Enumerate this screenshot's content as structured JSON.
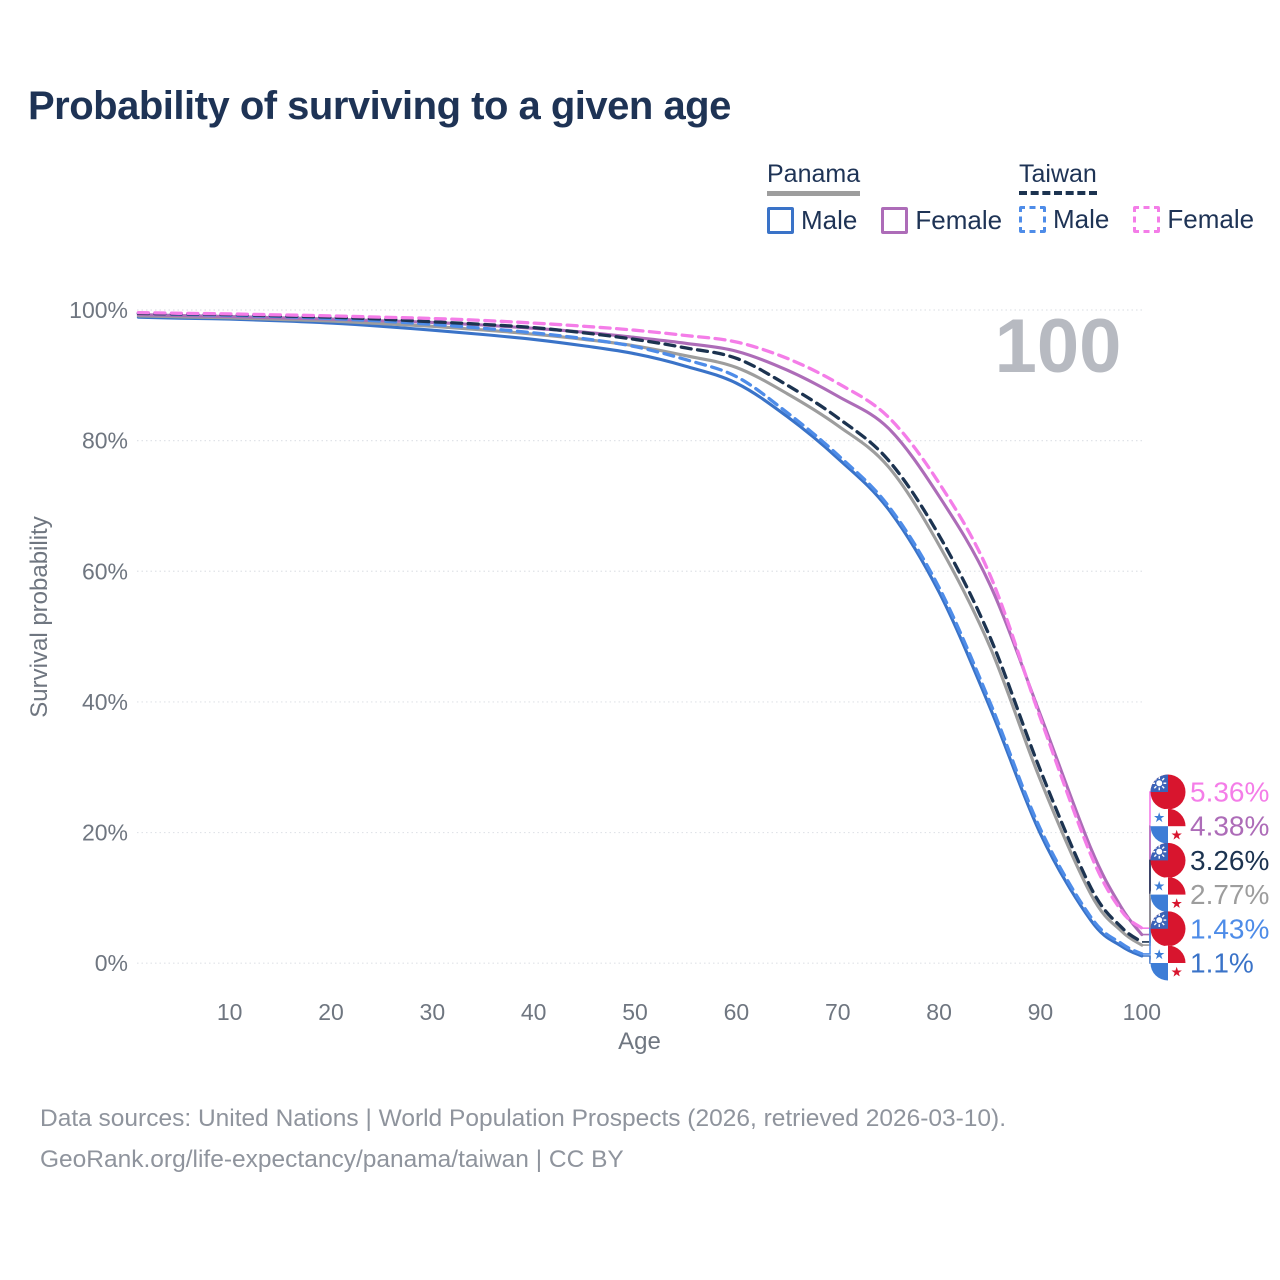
{
  "title": "Probability of surviving to a given age",
  "legend": {
    "panama": {
      "label": "Panama",
      "male": "Male",
      "female": "Female"
    },
    "taiwan": {
      "label": "Taiwan",
      "male": "Male",
      "female": "Female"
    }
  },
  "axis": {
    "y_label": "Survival probability",
    "x_label": "Age",
    "y_ticks": [
      "0%",
      "20%",
      "40%",
      "60%",
      "80%",
      "100%"
    ],
    "x_ticks": [
      "10",
      "20",
      "30",
      "40",
      "50",
      "60",
      "70",
      "80",
      "90",
      "100"
    ]
  },
  "age_indicator": "100",
  "footer": {
    "line1": "Data sources: United Nations | World Population Prospects (2026, retrieved 2026-03-10).",
    "line2": "GeoRank.org/life-expectancy/panama/taiwan | CC BY"
  },
  "colors": {
    "title": "#1e3355",
    "tick_text": "#6f7680",
    "gridline": "#e0e3e8",
    "footer_text": "#8f949d",
    "age_indicator": "#b7bac1",
    "panama_male": "#3a73c8",
    "panama_female": "#ad6cb8",
    "panama_total": "#9d9d9d",
    "taiwan_male": "#4e8ce8",
    "taiwan_female": "#f47de8",
    "taiwan_total": "#1c3350",
    "flag_red": "#d8152e",
    "flag_blue_taiwan": "#3b63b8",
    "flag_blue_panama": "#3d7dd6"
  },
  "chart_data": {
    "type": "line",
    "title": "Probability of surviving to a given age",
    "xlabel": "Age",
    "ylabel": "Survival probability",
    "xlim": [
      1,
      100
    ],
    "ylim": [
      0,
      100
    ],
    "x_tick_values": [
      10,
      20,
      30,
      40,
      50,
      60,
      70,
      80,
      90,
      100
    ],
    "y_tick_values": [
      0,
      20,
      40,
      60,
      80,
      100
    ],
    "grid": true,
    "legend_position": "top-right",
    "hover_age": 100,
    "series": [
      {
        "key": "panama_male",
        "name": "Panama Male",
        "country": "Panama",
        "sex": "male",
        "line": "solid",
        "end_label": "1.1%",
        "end_value": 1.1,
        "points": [
          [
            1,
            98.9
          ],
          [
            5,
            98.75
          ],
          [
            10,
            98.6
          ],
          [
            15,
            98.35
          ],
          [
            20,
            98.0
          ],
          [
            25,
            97.5
          ],
          [
            30,
            96.9
          ],
          [
            35,
            96.25
          ],
          [
            40,
            95.5
          ],
          [
            45,
            94.5
          ],
          [
            50,
            93.3
          ],
          [
            55,
            91.4
          ],
          [
            60,
            88.8
          ],
          [
            65,
            83.7
          ],
          [
            70,
            77.3
          ],
          [
            75,
            69.5
          ],
          [
            80,
            56.8
          ],
          [
            85,
            39.2
          ],
          [
            90,
            19.8
          ],
          [
            95,
            6.5
          ],
          [
            98,
            2.6
          ],
          [
            100,
            1.1
          ]
        ]
      },
      {
        "key": "panama_total",
        "name": "Panama Total",
        "country": "Panama",
        "sex": "both",
        "line": "solid",
        "end_label": "2.77%",
        "end_value": 2.77,
        "points": [
          [
            1,
            99.1
          ],
          [
            5,
            98.95
          ],
          [
            10,
            98.8
          ],
          [
            15,
            98.55
          ],
          [
            20,
            98.3
          ],
          [
            25,
            97.9
          ],
          [
            30,
            97.5
          ],
          [
            35,
            96.95
          ],
          [
            40,
            96.3
          ],
          [
            45,
            95.5
          ],
          [
            50,
            94.5
          ],
          [
            55,
            93.0
          ],
          [
            60,
            91.2
          ],
          [
            65,
            87.2
          ],
          [
            70,
            82.3
          ],
          [
            75,
            76.0
          ],
          [
            80,
            64.0
          ],
          [
            85,
            48.5
          ],
          [
            90,
            28.0
          ],
          [
            95,
            10.5
          ],
          [
            98,
            4.9
          ],
          [
            100,
            2.77
          ]
        ]
      },
      {
        "key": "panama_female",
        "name": "Panama Female",
        "country": "Panama",
        "sex": "female",
        "line": "solid",
        "end_label": "4.38%",
        "end_value": 4.38,
        "points": [
          [
            1,
            99.3
          ],
          [
            5,
            99.15
          ],
          [
            10,
            99.0
          ],
          [
            15,
            98.8
          ],
          [
            20,
            98.6
          ],
          [
            25,
            98.35
          ],
          [
            30,
            98.1
          ],
          [
            35,
            97.7
          ],
          [
            40,
            97.2
          ],
          [
            45,
            96.6
          ],
          [
            50,
            95.8
          ],
          [
            55,
            94.9
          ],
          [
            60,
            93.7
          ],
          [
            65,
            90.8
          ],
          [
            70,
            86.8
          ],
          [
            75,
            81.9
          ],
          [
            80,
            71.5
          ],
          [
            85,
            58.0
          ],
          [
            90,
            38.0
          ],
          [
            95,
            17.5
          ],
          [
            98,
            8.5
          ],
          [
            100,
            4.38
          ]
        ]
      },
      {
        "key": "taiwan_male",
        "name": "Taiwan Male",
        "country": "Taiwan",
        "sex": "male",
        "line": "dashed",
        "end_label": "1.43%",
        "end_value": 1.43,
        "points": [
          [
            1,
            99.5
          ],
          [
            5,
            99.35
          ],
          [
            10,
            99.2
          ],
          [
            15,
            99.0
          ],
          [
            20,
            98.7
          ],
          [
            25,
            98.3
          ],
          [
            30,
            97.8
          ],
          [
            35,
            97.2
          ],
          [
            40,
            96.5
          ],
          [
            45,
            95.6
          ],
          [
            50,
            94.4
          ],
          [
            55,
            92.4
          ],
          [
            60,
            89.8
          ],
          [
            65,
            84.3
          ],
          [
            70,
            77.8
          ],
          [
            75,
            70.0
          ],
          [
            80,
            57.5
          ],
          [
            85,
            40.0
          ],
          [
            90,
            20.5
          ],
          [
            95,
            7.0
          ],
          [
            98,
            3.0
          ],
          [
            100,
            1.43
          ]
        ]
      },
      {
        "key": "taiwan_total",
        "name": "Taiwan Total",
        "country": "Taiwan",
        "sex": "both",
        "line": "dashed",
        "end_label": "3.26%",
        "end_value": 3.26,
        "points": [
          [
            1,
            99.5
          ],
          [
            5,
            99.4
          ],
          [
            10,
            99.3
          ],
          [
            15,
            99.1
          ],
          [
            20,
            98.9
          ],
          [
            25,
            98.6
          ],
          [
            30,
            98.2
          ],
          [
            35,
            97.8
          ],
          [
            40,
            97.3
          ],
          [
            45,
            96.5
          ],
          [
            50,
            95.5
          ],
          [
            55,
            94.2
          ],
          [
            60,
            92.6
          ],
          [
            65,
            88.5
          ],
          [
            70,
            83.5
          ],
          [
            75,
            77.0
          ],
          [
            80,
            65.5
          ],
          [
            85,
            50.0
          ],
          [
            90,
            29.5
          ],
          [
            95,
            11.5
          ],
          [
            98,
            5.5
          ],
          [
            100,
            3.26
          ]
        ]
      },
      {
        "key": "taiwan_female",
        "name": "Taiwan Female",
        "country": "Taiwan",
        "sex": "female",
        "line": "dashed",
        "end_label": "5.36%",
        "end_value": 5.36,
        "points": [
          [
            1,
            99.6
          ],
          [
            5,
            99.5
          ],
          [
            10,
            99.4
          ],
          [
            15,
            99.25
          ],
          [
            20,
            99.1
          ],
          [
            25,
            98.9
          ],
          [
            30,
            98.7
          ],
          [
            35,
            98.4
          ],
          [
            40,
            98.0
          ],
          [
            45,
            97.5
          ],
          [
            50,
            96.9
          ],
          [
            55,
            96.1
          ],
          [
            60,
            95.1
          ],
          [
            65,
            92.6
          ],
          [
            70,
            88.8
          ],
          [
            75,
            83.6
          ],
          [
            80,
            73.5
          ],
          [
            85,
            59.5
          ],
          [
            90,
            37.5
          ],
          [
            95,
            16.5
          ],
          [
            98,
            8.0
          ],
          [
            100,
            5.36
          ]
        ]
      }
    ],
    "annotations": [
      {
        "key": "taiwan_female",
        "flag": "taiwan",
        "text": "5.36%"
      },
      {
        "key": "panama_female",
        "flag": "panama",
        "text": "4.38%"
      },
      {
        "key": "taiwan_total",
        "flag": "taiwan",
        "text": "3.26%"
      },
      {
        "key": "panama_total",
        "flag": "panama",
        "text": "2.77%"
      },
      {
        "key": "taiwan_male",
        "flag": "taiwan",
        "text": "1.43%"
      },
      {
        "key": "panama_male",
        "flag": "panama",
        "text": "1.1%"
      }
    ]
  }
}
